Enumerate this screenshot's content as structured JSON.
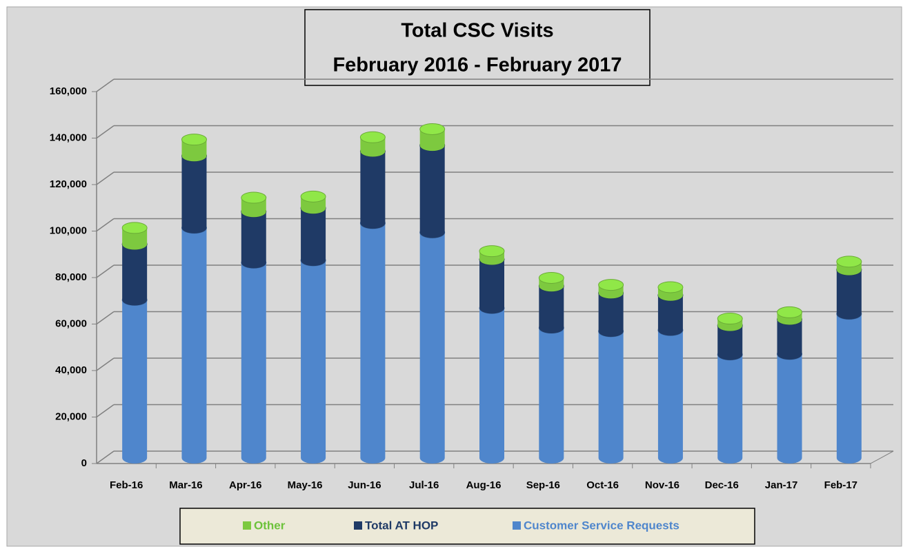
{
  "chart_data": {
    "type": "stacked_bar_3d",
    "title": "Total CSC Visits",
    "subtitle": "February 2016 - February 2017",
    "categories": [
      "Feb-16",
      "Mar-16",
      "Apr-16",
      "May-16",
      "Jun-16",
      "Jul-16",
      "Aug-16",
      "Sep-16",
      "Oct-16",
      "Nov-16",
      "Dec-16",
      "Jan-17",
      "Feb-17"
    ],
    "series": [
      {
        "name": "Other",
        "color": "#7dc93f",
        "values": [
          7000,
          7000,
          6000,
          5000,
          6000,
          7000,
          3500,
          3500,
          3500,
          3500,
          3000,
          3000,
          3500
        ]
      },
      {
        "name": "Total AT HOP",
        "color": "#1f3a66",
        "values": [
          24000,
          31000,
          22000,
          22500,
          31000,
          37500,
          21000,
          18000,
          16500,
          15000,
          12500,
          15000,
          19000
        ]
      },
      {
        "name": "Customer Service Requests",
        "color": "#4f86cc",
        "values": [
          68000,
          99000,
          84000,
          85000,
          101000,
          97000,
          64500,
          56000,
          54500,
          55000,
          44500,
          44700,
          62000
        ]
      }
    ],
    "ylim": [
      0,
      160000
    ],
    "yticks": [
      0,
      {
        "value": 20000,
        "label": "20,000"
      },
      {
        "value": 40000,
        "label": "40,000"
      },
      {
        "value": 60000,
        "label": "60,000"
      },
      {
        "value": 80000,
        "label": "80,000"
      },
      {
        "value": 100000,
        "label": "100,000"
      },
      {
        "value": 120000,
        "label": "120,000"
      },
      {
        "value": 140000,
        "label": "140,000"
      },
      {
        "value": 160000,
        "label": "160,000"
      }
    ],
    "grid": true,
    "legend": "bottom"
  }
}
